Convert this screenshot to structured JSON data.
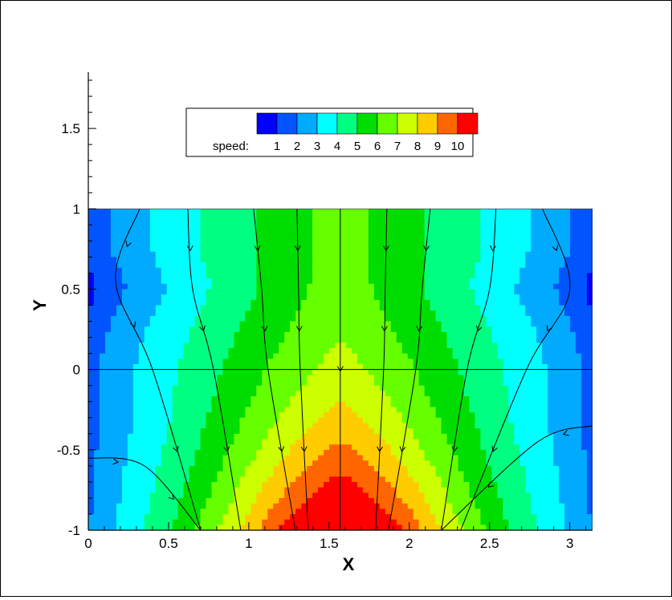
{
  "chart_data": {
    "type": "heatmap",
    "title": "",
    "xlabel": "X",
    "ylabel": "Y",
    "xlim": [
      0,
      3.14159
    ],
    "ylim": [
      -1,
      1.85
    ],
    "plot_region": {
      "x": [
        0,
        3.14159
      ],
      "y": [
        -1,
        1
      ]
    },
    "xticks": [
      {
        "value": 0,
        "label": "0"
      },
      {
        "value": 0.5,
        "label": "0.5"
      },
      {
        "value": 1,
        "label": "1"
      },
      {
        "value": 1.5,
        "label": "1.5"
      },
      {
        "value": 2,
        "label": "2"
      },
      {
        "value": 2.5,
        "label": "2.5"
      },
      {
        "value": 3,
        "label": "3"
      }
    ],
    "yticks": [
      {
        "value": -1,
        "label": "-1"
      },
      {
        "value": -0.5,
        "label": "-0.5"
      },
      {
        "value": 0,
        "label": "0"
      },
      {
        "value": 0.5,
        "label": "0.5"
      },
      {
        "value": 1,
        "label": "1"
      },
      {
        "value": 1.5,
        "label": "1.5"
      }
    ],
    "variable": "speed",
    "legend": {
      "title": "speed:",
      "position": "top-center",
      "levels": [
        {
          "label": "1",
          "value": 1
        },
        {
          "label": "2",
          "value": 2
        },
        {
          "label": "3",
          "value": 3
        },
        {
          "label": "4",
          "value": 4
        },
        {
          "label": "5",
          "value": 5
        },
        {
          "label": "6",
          "value": 6
        },
        {
          "label": "7",
          "value": 7
        },
        {
          "label": "8",
          "value": 8
        },
        {
          "label": "9",
          "value": 9
        },
        {
          "label": "10",
          "value": 10
        }
      ],
      "colors": [
        "#0000ff",
        "#0055ff",
        "#00aaff",
        "#00ffff",
        "#00ff80",
        "#00dd00",
        "#66ff00",
        "#ccff00",
        "#ffcc00",
        "#ff6600",
        "#ff0000"
      ]
    },
    "grid": false,
    "interior_line_y": 0,
    "streamlines": [
      {
        "points": [
          [
            0.32,
            1
          ],
          [
            0.17,
            0.55
          ],
          [
            0.4,
            0
          ],
          [
            0.7,
            -1
          ]
        ]
      },
      {
        "points": [
          [
            0.62,
            1
          ],
          [
            0.65,
            0.5
          ],
          [
            0.78,
            0
          ],
          [
            0.95,
            -1
          ]
        ]
      },
      {
        "points": [
          [
            1.03,
            1
          ],
          [
            1.08,
            0.5
          ],
          [
            1.12,
            0
          ],
          [
            1.29,
            -1
          ]
        ]
      },
      {
        "points": [
          [
            1.3,
            1
          ],
          [
            1.31,
            0.5
          ],
          [
            1.32,
            0
          ],
          [
            1.37,
            -1
          ]
        ]
      },
      {
        "points": [
          [
            1.57,
            1
          ],
          [
            1.57,
            -1
          ]
        ]
      },
      {
        "points": [
          [
            1.86,
            1
          ],
          [
            1.85,
            0.5
          ],
          [
            1.84,
            0
          ],
          [
            1.79,
            -1
          ]
        ]
      },
      {
        "points": [
          [
            2.13,
            1
          ],
          [
            2.08,
            0.5
          ],
          [
            2.04,
            0
          ],
          [
            1.87,
            -1
          ]
        ]
      },
      {
        "points": [
          [
            2.54,
            1
          ],
          [
            2.5,
            0.5
          ],
          [
            2.36,
            0
          ],
          [
            2.2,
            -1
          ]
        ]
      },
      {
        "points": [
          [
            2.83,
            1
          ],
          [
            3.0,
            0.5
          ],
          [
            2.73,
            0
          ],
          [
            2.32,
            -1
          ]
        ]
      },
      {
        "points": [
          [
            0,
            -0.55
          ],
          [
            0.35,
            -0.6
          ],
          [
            0.7,
            -1
          ]
        ]
      },
      {
        "points": [
          [
            3.14,
            -0.35
          ],
          [
            2.8,
            -0.45
          ],
          [
            2.2,
            -1
          ]
        ]
      }
    ]
  }
}
